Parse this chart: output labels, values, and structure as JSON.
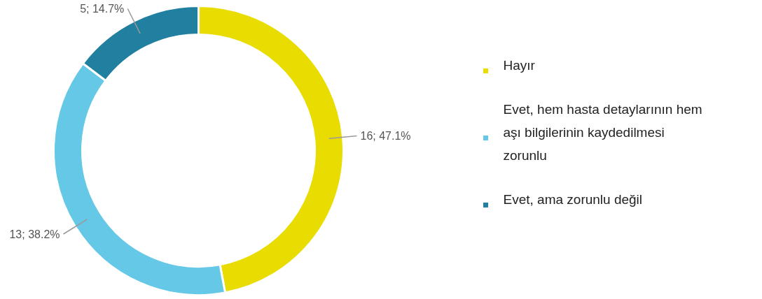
{
  "chart_data": {
    "type": "donut",
    "categories": [
      "Hayır",
      "Evet, hem hasta detaylarının hem aşı bilgilerinin kaydedilmesi zorunlu",
      "Evet, ama zorunlu değil"
    ],
    "values": [
      16,
      13,
      5
    ],
    "colors": [
      "#e8dc00",
      "#64c8e6",
      "#217fa0"
    ],
    "value_labels": [
      "16; 47.1%",
      "13; 38.2%",
      "5; 14.7%"
    ],
    "legend": "right"
  }
}
